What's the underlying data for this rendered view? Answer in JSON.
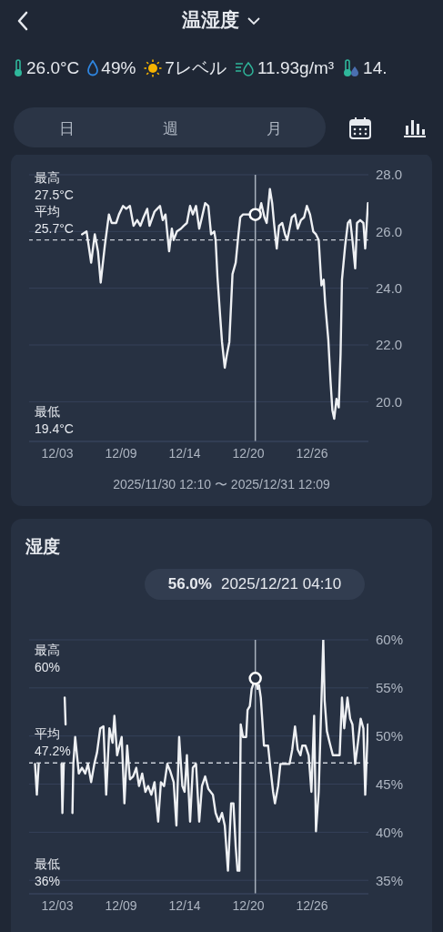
{
  "chart_data": [
    {
      "type": "line",
      "title": "温湿度",
      "annotations": [
        "26.0°C",
        "49%",
        "7レベル",
        "11.93g/m³",
        "14.",
        "日",
        "週",
        "月",
        "最高 27.5°C",
        "最低 19.4°C",
        "2025/11/30 12:10 〜 2025/12/31 12:09"
      ],
      "x": [
        "2025-12-05T08:10",
        "2025-12-05T18:10",
        "2025-12-06T04:10",
        "2025-12-06T12:10",
        "2025-12-06T19:10",
        "2025-12-07T01:10",
        "2025-12-07T10:10",
        "2025-12-07T19:10",
        "2025-12-08T01:10",
        "2025-12-08T11:10",
        "2025-12-08T17:10",
        "2025-12-09T02:10",
        "2025-12-09T09:10",
        "2025-12-09T17:10",
        "2025-12-10T01:10",
        "2025-12-10T09:10",
        "2025-12-10T16:10",
        "2025-12-10T23:10",
        "2025-12-11T07:10",
        "2025-12-11T12:10",
        "2025-12-11T23:10",
        "2025-12-12T05:10",
        "2025-12-12T11:10",
        "2025-12-12T17:10",
        "2025-12-12T23:10",
        "2025-12-13T07:10",
        "2025-12-13T13:10",
        "2025-12-13T17:10",
        "2025-12-14T00:10",
        "2025-12-14T09:10",
        "2025-12-14T15:10",
        "2025-12-14T22:10",
        "2025-12-15T05:10",
        "2025-12-15T11:10",
        "2025-12-15T18:10",
        "2025-12-16T01:10",
        "2025-12-16T07:10",
        "2025-12-16T14:10",
        "2025-12-16T21:10",
        "2025-12-17T03:10",
        "2025-12-17T10:10",
        "2025-12-17T13:10",
        "2025-12-17T17:10",
        "2025-12-17T23:10",
        "2025-12-18T03:10",
        "2025-12-18T09:10",
        "2025-12-18T13:10",
        "2025-12-18T19:10",
        "2025-12-19T02:10",
        "2025-12-19T09:10",
        "2025-12-19T15:10",
        "2025-12-19T19:10",
        "2025-12-20T01:10",
        "2025-12-20T08:10",
        "2025-12-20T15:10",
        "2025-12-20T21:10",
        "2025-12-21T04:10",
        "2025-12-21T11:10",
        "2025-12-21T17:10",
        "2025-12-22T00:10",
        "2025-12-22T05:10",
        "2025-12-22T12:10",
        "2025-12-22T17:10",
        "2025-12-22T21:10",
        "2025-12-23T03:10",
        "2025-12-23T08:10",
        "2025-12-23T15:10",
        "2025-12-23T21:10",
        "2025-12-24T02:10",
        "2025-12-24T07:10",
        "2025-12-24T12:10",
        "2025-12-24T19:10",
        "2025-12-25T01:10",
        "2025-12-25T08:10",
        "2025-12-25T15:10",
        "2025-12-25T21:10",
        "2025-12-26T04:10",
        "2025-12-26T11:10",
        "2025-12-26T17:10",
        "2025-12-26T23:10",
        "2025-12-27T05:10",
        "2025-12-27T10:10",
        "2025-12-27T13:10",
        "2025-12-27T20:10",
        "2025-12-28T01:10",
        "2025-12-28T05:10",
        "2025-12-28T09:10",
        "2025-12-28T14:10",
        "2025-12-28T19:10",
        "2025-12-28T23:10",
        "2025-12-29T02:10",
        "2025-12-29T09:10",
        "2025-12-29T15:10",
        "2025-12-29T20:10",
        "2025-12-30T01:10",
        "2025-12-30T07:10",
        "2025-12-30T11:10",
        "2025-12-30T18:10",
        "2025-12-31T01:10",
        "2025-12-31T05:10",
        "2025-12-31T11:10"
      ],
      "series": [
        {
          "color": "#eef0f3",
          "values": [
            25.9,
            26.0,
            24.9,
            25.9,
            25.3,
            24.2,
            25.5,
            26.6,
            26.3,
            26.3,
            26.6,
            26.9,
            26.8,
            26.9,
            26.2,
            26.4,
            26.2,
            26.5,
            26.8,
            26.2,
            26.7,
            26.8,
            26.9,
            26.4,
            26.6,
            25.3,
            26.1,
            25.7,
            26.0,
            26.1,
            26.2,
            26.3,
            26.9,
            26.6,
            26.9,
            26.1,
            26.5,
            27.0,
            26.9,
            25.9,
            26.0,
            25.7,
            24.4,
            23.0,
            22.1,
            21.2,
            21.6,
            22.1,
            24.5,
            24.9,
            25.9,
            26.5,
            26.6,
            26.6,
            26.6,
            26.5,
            26.6,
            26.6,
            27.0,
            26.5,
            26.3,
            27.5,
            27.0,
            26.3,
            25.4,
            26.2,
            26.3,
            25.9,
            25.7,
            26.1,
            26.5,
            26.6,
            26.1,
            26.4,
            26.5,
            26.9,
            26.6,
            26.0,
            25.9,
            25.7,
            24.1,
            24.3,
            23.5,
            22.2,
            20.7,
            19.7,
            19.4,
            20.1,
            19.8,
            21.7,
            24.3,
            25.5,
            26.3,
            26.4,
            25.7,
            24.7,
            26.3,
            26.4,
            26.3,
            25.4,
            27.0
          ]
        }
      ],
      "xlim": [
        "2025-11-30T12:10",
        "2025-12-31T12:09"
      ],
      "xticks": [
        {
          "value": "2025-12-03T02:10",
          "label": "12/03"
        },
        {
          "value": "2025-12-08T21:50",
          "label": "12/09"
        },
        {
          "value": "2025-12-14T17:10",
          "label": "12/14"
        },
        {
          "value": "2025-12-20T12:50",
          "label": "12/20"
        },
        {
          "value": "2025-12-26T08:30",
          "label": "12/26"
        }
      ],
      "ylim": [
        18.6,
        28
      ],
      "yticks": [
        {
          "value": 20,
          "label": "20.0"
        },
        {
          "value": 22,
          "label": "22.0"
        },
        {
          "value": 24,
          "label": "24.0"
        },
        {
          "value": 26,
          "label": "26.0"
        },
        {
          "value": 28,
          "label": "28.0"
        }
      ],
      "grid": "y",
      "ref_lines": [
        {
          "axis": "y",
          "value": 25.7,
          "label": "平均 25.7°C",
          "line_style": "dashed",
          "color": "#c9ced6"
        },
        {
          "axis": "x",
          "value": "2025-12-21T04:10",
          "label": null,
          "line_style": "solid",
          "color": "#a9b1bd"
        }
      ]
    },
    {
      "type": "line",
      "title": "湿度",
      "annotations": [
        "56.0% 2025/12/21 04:10",
        "最高 60%",
        "最低 36%"
      ],
      "x": [
        "2025-12-01T01:10",
        "2025-12-01T05:10",
        "2025-12-01T09:10",
        "2025-12-02T00:10",
        "2025-12-03T11:10",
        "2025-12-03T13:10",
        "2025-12-03T16:10",
        "2025-12-03T17:10",
        "2025-12-03T18:10",
        "2025-12-03T20:10",
        "2025-12-04T00:10",
        "2025-12-04T11:10",
        "2025-12-04T13:10",
        "2025-12-04T17:10",
        "2025-12-05T01:10",
        "2025-12-05T08:10",
        "2025-12-05T15:10",
        "2025-12-05T21:10",
        "2025-12-06T04:10",
        "2025-12-06T11:10",
        "2025-12-06T17:10",
        "2025-12-07T00:10",
        "2025-12-07T07:10",
        "2025-12-07T13:10",
        "2025-12-07T20:10",
        "2025-12-08T03:10",
        "2025-12-08T07:10",
        "2025-12-08T13:10",
        "2025-12-08T23:10",
        "2025-12-09T05:10",
        "2025-12-09T11:10",
        "2025-12-09T17:10",
        "2025-12-10T00:10",
        "2025-12-10T07:10",
        "2025-12-10T13:10",
        "2025-12-10T20:10",
        "2025-12-11T03:10",
        "2025-12-11T09:10",
        "2025-12-11T16:10",
        "2025-12-11T23:10",
        "2025-12-12T07:10",
        "2025-12-12T13:10",
        "2025-12-12T20:10",
        "2025-12-13T03:10",
        "2025-12-13T09:10",
        "2025-12-13T17:10",
        "2025-12-13T23:10",
        "2025-12-14T05:10",
        "2025-12-14T12:10",
        "2025-12-14T17:10",
        "2025-12-14T22:10",
        "2025-12-15T05:10",
        "2025-12-15T11:10",
        "2025-12-15T18:10",
        "2025-12-16T01:10",
        "2025-12-16T07:10",
        "2025-12-16T14:10",
        "2025-12-16T21:10",
        "2025-12-17T07:10",
        "2025-12-17T13:10",
        "2025-12-17T20:10",
        "2025-12-18T03:10",
        "2025-12-18T09:10",
        "2025-12-18T16:10",
        "2025-12-18T23:10",
        "2025-12-19T04:10",
        "2025-12-19T09:10",
        "2025-12-19T13:10",
        "2025-12-19T17:10",
        "2025-12-19T20:10",
        "2025-12-20T01:10",
        "2025-12-20T08:10",
        "2025-12-20T11:10",
        "2025-12-20T16:10",
        "2025-12-20T20:10",
        "2025-12-21T04:10",
        "2025-12-21T09:10",
        "2025-12-21T12:10",
        "2025-12-21T16:10",
        "2025-12-21T23:10",
        "2025-12-22T08:10",
        "2025-12-22T13:10",
        "2025-12-22T19:10",
        "2025-12-22T23:10",
        "2025-12-23T06:10",
        "2025-12-23T11:10",
        "2025-12-23T23:10",
        "2025-12-24T07:10",
        "2025-12-24T13:10",
        "2025-12-24T19:10",
        "2025-12-25T01:10",
        "2025-12-25T07:10",
        "2025-12-25T11:10",
        "2025-12-25T18:10",
        "2025-12-26T01:10",
        "2025-12-26T07:10",
        "2025-12-26T13:10",
        "2025-12-26T17:10",
        "2025-12-26T23:10",
        "2025-12-27T03:10",
        "2025-12-27T09:10",
        "2025-12-27T12:10",
        "2025-12-27T17:10",
        "2025-12-27T23:10",
        "2025-12-28T06:10",
        "2025-12-28T13:10",
        "2025-12-28T21:10",
        "2025-12-29T02:10",
        "2025-12-29T07:10",
        "2025-12-29T14:10",
        "2025-12-29T20:10",
        "2025-12-30T01:10",
        "2025-12-30T07:10",
        "2025-12-30T13:10",
        "2025-12-30T19:10",
        "2025-12-31T01:10",
        "2025-12-31T05:10",
        "2025-12-31T11:10"
      ],
      "series": [
        {
          "color": "#eef0f3",
          "values": [
            47.1,
            43.9,
            47.1,
            null,
            47.1,
            42.0,
            47.1,
            null,
            54.0,
            51.2,
            null,
            42.0,
            47.1,
            49.9,
            46.1,
            46.7,
            46.1,
            47.1,
            45.2,
            47.1,
            48.3,
            50.8,
            51.0,
            43.9,
            50.8,
            49.3,
            52.1,
            48.0,
            49.9,
            43.0,
            49.0,
            45.5,
            45.8,
            46.7,
            44.8,
            46.1,
            44.2,
            44.8,
            43.9,
            45.2,
            41.1,
            45.2,
            44.8,
            47.1,
            46.4,
            45.2,
            40.7,
            49.9,
            44.8,
            44.2,
            48.0,
            41.1,
            46.7,
            47.1,
            41.1,
            44.8,
            45.8,
            44.5,
            43.9,
            42.0,
            41.1,
            42.0,
            40.7,
            36.0,
            43.0,
            43.0,
            38.5,
            36.0,
            36.0,
            51.2,
            49.9,
            49.9,
            52.7,
            53.1,
            54.9,
            56.0,
            54.9,
            55.3,
            54.0,
            49.0,
            49.0,
            46.7,
            44.2,
            43.0,
            44.8,
            47.1,
            47.1,
            47.1,
            48.6,
            51.0,
            48.6,
            48.0,
            49.0,
            49.0,
            48.0,
            44.2,
            52.1,
            40.1,
            44.2,
            50.5,
            60.0,
            53.7,
            50.5,
            49.3,
            48.0,
            48.0,
            48.0,
            54.0,
            50.8,
            54.0,
            51.8,
            51.2,
            47.1,
            49.3,
            51.8,
            50.8,
            43.9,
            51.2
          ]
        }
      ],
      "xlim": [
        "2025-11-30T12:10",
        "2025-12-31T12:09"
      ],
      "xticks": [
        {
          "value": "2025-12-03T02:10",
          "label": "12/03"
        },
        {
          "value": "2025-12-08T21:50",
          "label": "12/09"
        },
        {
          "value": "2025-12-14T17:10",
          "label": "12/14"
        },
        {
          "value": "2025-12-20T12:50",
          "label": "12/20"
        },
        {
          "value": "2025-12-26T08:30",
          "label": "12/26"
        }
      ],
      "ylim": [
        33.6,
        60
      ],
      "yticks": [
        {
          "value": 35,
          "label": "35%"
        },
        {
          "value": 40,
          "label": "40%"
        },
        {
          "value": 45,
          "label": "45%"
        },
        {
          "value": 50,
          "label": "50%"
        },
        {
          "value": 55,
          "label": "55%"
        },
        {
          "value": 60,
          "label": "60%"
        }
      ],
      "grid": "y",
      "ref_lines": [
        {
          "axis": "y",
          "value": 47.2,
          "label": "平均 47.2%",
          "line_style": "dashed",
          "color": "#c9ced6"
        },
        {
          "axis": "x",
          "value": "2025-12-21T04:10",
          "label": null,
          "line_style": "solid",
          "color": "#a9b1bd"
        }
      ]
    }
  ]
}
